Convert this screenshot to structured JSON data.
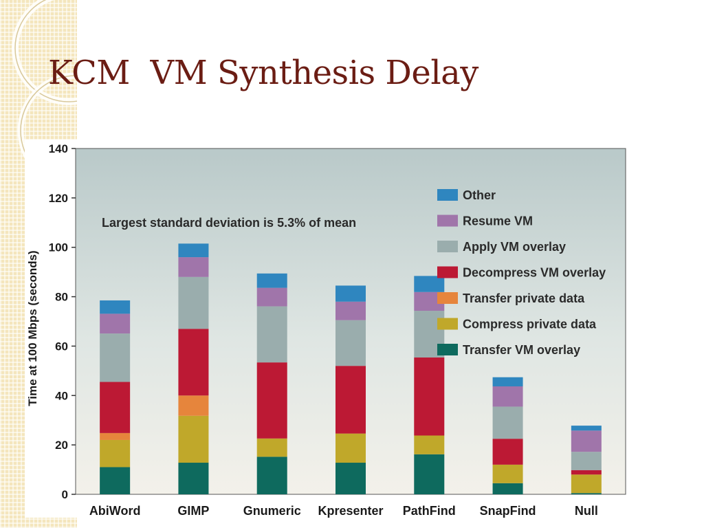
{
  "slide": {
    "title": "KCM  VM Synthesis Delay"
  },
  "chart_data": {
    "type": "bar",
    "stacked": true,
    "title": "",
    "xlabel": "",
    "ylabel": "Time at 100 Mbps (seconds)",
    "ylim": [
      0,
      140
    ],
    "yticks": [
      0,
      20,
      40,
      60,
      80,
      100,
      120,
      140
    ],
    "grid": false,
    "legend_position": "top-right",
    "annotation": "Largest standard deviation is 5.3% of mean",
    "categories": [
      "AbiWord",
      "GIMP",
      "Gnumeric",
      "Kpresenter",
      "PathFind",
      "SnapFind",
      "Null"
    ],
    "series": [
      {
        "name": "Transfer VM overlay",
        "color": "#0e6a5e",
        "values": [
          11.0,
          12.8,
          15.2,
          12.8,
          16.2,
          4.5,
          0.5
        ]
      },
      {
        "name": "Compress private data",
        "color": "#c0a82a",
        "values": [
          11.0,
          19.0,
          7.4,
          11.8,
          7.6,
          7.5,
          7.5
        ]
      },
      {
        "name": "Transfer private data",
        "color": "#e6853c",
        "values": [
          2.8,
          8.2,
          0.0,
          0.0,
          0.0,
          0.0,
          0.0
        ]
      },
      {
        "name": "Decompress VM overlay",
        "color": "#bc1934",
        "values": [
          20.7,
          27.0,
          30.8,
          27.4,
          31.6,
          10.5,
          1.8
        ]
      },
      {
        "name": "Apply VM overlay",
        "color": "#9aadad",
        "values": [
          19.6,
          21.0,
          22.7,
          18.5,
          18.9,
          13.0,
          7.4
        ]
      },
      {
        "name": "Resume VM",
        "color": "#a075aa",
        "values": [
          8.0,
          8.0,
          7.5,
          7.5,
          7.6,
          8.2,
          8.6
        ]
      },
      {
        "name": "Other",
        "color": "#2f86bf",
        "values": [
          5.4,
          5.5,
          5.8,
          6.5,
          6.5,
          3.7,
          2.0
        ]
      }
    ],
    "legend_order": [
      "Other",
      "Resume VM",
      "Apply VM overlay",
      "Decompress VM overlay",
      "Transfer private data",
      "Compress private data",
      "Transfer VM overlay"
    ]
  }
}
